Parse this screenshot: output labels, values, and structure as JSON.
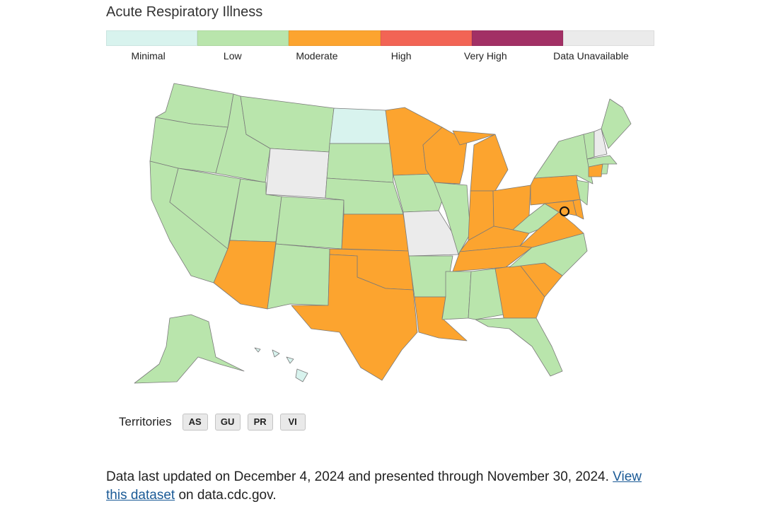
{
  "title": "Acute Respiratory Illness",
  "legend": [
    {
      "label": "Minimal",
      "color": "#d8f3ee"
    },
    {
      "label": "Low",
      "color": "#b9e5ac"
    },
    {
      "label": "Moderate",
      "color": "#fca42f"
    },
    {
      "label": "High",
      "color": "#f26455"
    },
    {
      "label": "Very High",
      "color": "#a23065"
    },
    {
      "label": "Data Unavailable",
      "color": "#ebebeb"
    }
  ],
  "states": {
    "AL": "Low",
    "AK": "Low",
    "AZ": "Moderate",
    "AR": "Low",
    "CA": "Low",
    "CO": "Low",
    "CT": "Moderate",
    "DE": "Moderate",
    "DC": "Moderate",
    "FL": "Low",
    "GA": "Moderate",
    "HI": "Minimal",
    "ID": "Low",
    "IL": "Low",
    "IN": "Moderate",
    "IA": "Low",
    "KS": "Moderate",
    "KY": "Moderate",
    "LA": "Moderate",
    "ME": "Low",
    "MD": "Moderate",
    "MA": "Low",
    "MI": "Moderate",
    "MN": "Moderate",
    "MS": "Low",
    "MO": "Data Unavailable",
    "MT": "Low",
    "NE": "Low",
    "NV": "Low",
    "NH": "Data Unavailable",
    "NJ": "Low",
    "NM": "Low",
    "NY": "Low",
    "NC": "Low",
    "ND": "Minimal",
    "OH": "Moderate",
    "OK": "Moderate",
    "OR": "Low",
    "PA": "Moderate",
    "RI": "Low",
    "SC": "Moderate",
    "SD": "Low",
    "TN": "Moderate",
    "TX": "Moderate",
    "UT": "Low",
    "VT": "Low",
    "VA": "Moderate",
    "WA": "Low",
    "WV": "Low",
    "WI": "Moderate",
    "WY": "Data Unavailable"
  },
  "territories": {
    "label": "Territories",
    "items": [
      "AS",
      "GU",
      "PR",
      "VI"
    ]
  },
  "footer": {
    "text_before": "Data last updated on December 4, 2024 and presented through November 30, 2024. ",
    "link_text": "View this dataset",
    "text_after": " on data.cdc.gov."
  }
}
